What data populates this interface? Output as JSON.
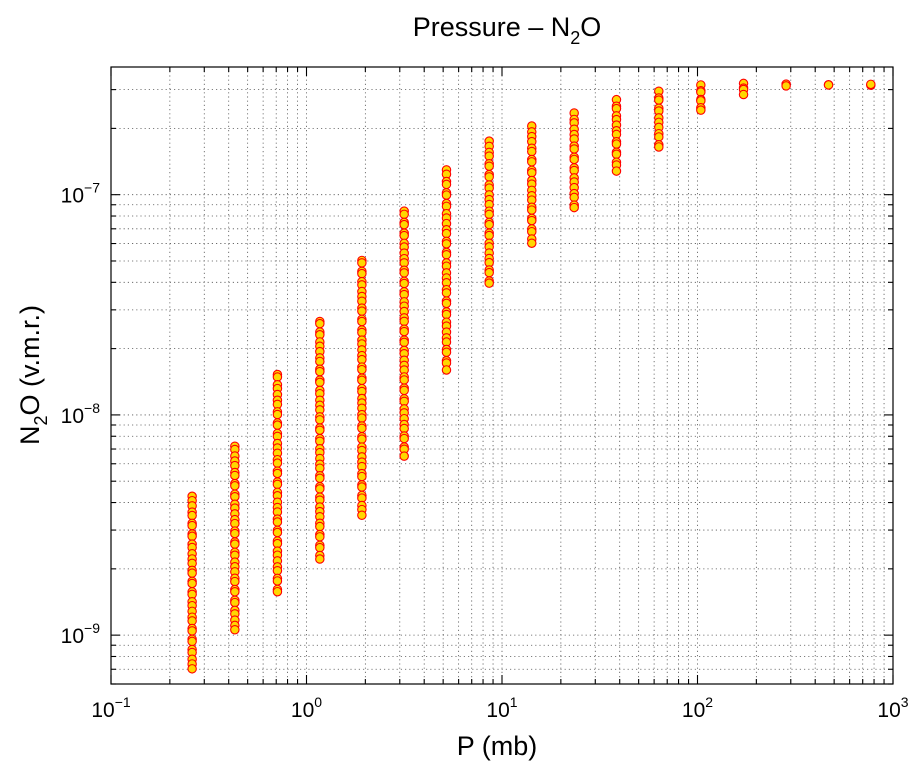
{
  "chart_data": {
    "type": "scatter",
    "title": "Pressure – N₂O",
    "title_parts": {
      "main": "Pressure – N",
      "sub": "2",
      "tail": "O"
    },
    "xlabel": "P (mb)",
    "ylabel_parts": {
      "main": "N",
      "sub": "2",
      "tail": "O (v.m.r.)"
    },
    "x_scale": "log",
    "y_scale": "log",
    "xlim": [
      0.1,
      1000
    ],
    "ylim": [
      6e-10,
      3.8e-07
    ],
    "x_ticks": [
      {
        "value": 0.1,
        "base": "10",
        "exp": "−1"
      },
      {
        "value": 1,
        "base": "10",
        "exp": "0"
      },
      {
        "value": 10,
        "base": "10",
        "exp": "1"
      },
      {
        "value": 100,
        "base": "10",
        "exp": "2"
      },
      {
        "value": 1000,
        "base": "10",
        "exp": "3"
      }
    ],
    "y_ticks": [
      {
        "value": 1e-09,
        "base": "10",
        "exp": "−9"
      },
      {
        "value": 1e-08,
        "base": "10",
        "exp": "−8"
      },
      {
        "value": 1e-07,
        "base": "10",
        "exp": "−7"
      }
    ],
    "grid": true,
    "marker": {
      "shape": "circle",
      "fill": "#ffd700",
      "edge": "#ff0000"
    },
    "columns": [
      {
        "x": 0.26,
        "y_min": 7e-10,
        "y_max": 4.3e-09
      },
      {
        "x": 0.43,
        "y_min": 1.05e-09,
        "y_max": 7.3e-09
      },
      {
        "x": 0.71,
        "y_min": 1.55e-09,
        "y_max": 1.55e-08
      },
      {
        "x": 1.17,
        "y_min": 2.2e-09,
        "y_max": 2.7e-08
      },
      {
        "x": 1.92,
        "y_min": 3.5e-09,
        "y_max": 5.1e-08
      },
      {
        "x": 3.16,
        "y_min": 6.5e-09,
        "y_max": 8.5e-08
      },
      {
        "x": 5.2,
        "y_min": 1.6e-08,
        "y_max": 1.3e-07
      },
      {
        "x": 8.6,
        "y_min": 3.9e-08,
        "y_max": 1.75e-07
      },
      {
        "x": 14.2,
        "y_min": 6e-08,
        "y_max": 2.05e-07
      },
      {
        "x": 23.4,
        "y_min": 8.6e-08,
        "y_max": 2.35e-07
      },
      {
        "x": 38.5,
        "y_min": 1.28e-07,
        "y_max": 2.7e-07
      },
      {
        "x": 63.4,
        "y_min": 1.62e-07,
        "y_max": 2.95e-07
      },
      {
        "x": 104,
        "y_min": 2.4e-07,
        "y_max": 3.15e-07
      },
      {
        "x": 172,
        "y_min": 2.85e-07,
        "y_max": 3.2e-07
      },
      {
        "x": 284,
        "y_min": 3.12e-07,
        "y_max": 3.18e-07
      },
      {
        "x": 468,
        "y_min": 3.14e-07,
        "y_max": 3.18e-07
      },
      {
        "x": 770,
        "y_min": 3.14e-07,
        "y_max": 3.18e-07
      }
    ]
  }
}
